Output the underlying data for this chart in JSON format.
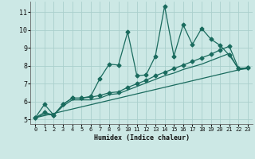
{
  "xlabel": "Humidex (Indice chaleur)",
  "bg_color": "#cce8e5",
  "line_color": "#1a6b5e",
  "grid_color": "#aacfcc",
  "xlim": [
    -0.5,
    23.5
  ],
  "ylim": [
    4.75,
    11.6
  ],
  "xticks": [
    0,
    1,
    2,
    3,
    4,
    5,
    6,
    7,
    8,
    9,
    10,
    11,
    12,
    13,
    14,
    15,
    16,
    17,
    18,
    19,
    20,
    21,
    22,
    23
  ],
  "yticks": [
    5,
    6,
    7,
    8,
    9,
    10,
    11
  ],
  "line1_x": [
    0,
    1,
    2,
    3,
    4,
    5,
    6,
    7,
    8,
    9,
    10,
    11,
    12,
    13,
    14,
    15,
    16,
    17,
    18,
    19,
    20,
    21,
    22,
    23
  ],
  "line1_y": [
    5.1,
    5.85,
    5.25,
    5.85,
    6.2,
    6.2,
    6.3,
    7.3,
    8.1,
    8.05,
    9.9,
    7.45,
    7.5,
    8.55,
    11.35,
    8.55,
    10.3,
    9.2,
    10.1,
    9.5,
    9.15,
    8.6,
    7.85,
    7.9
  ],
  "line2_x": [
    0,
    1,
    2,
    3,
    4,
    5,
    6,
    7,
    8,
    9,
    10,
    11,
    12,
    13,
    14,
    15,
    16,
    17,
    18,
    19,
    20,
    21,
    22,
    23
  ],
  "line2_y": [
    5.1,
    5.4,
    5.25,
    5.85,
    6.2,
    6.2,
    6.25,
    6.35,
    6.5,
    6.55,
    6.8,
    7.0,
    7.2,
    7.45,
    7.65,
    7.85,
    8.05,
    8.25,
    8.45,
    8.65,
    8.9,
    9.1,
    7.85,
    7.9
  ],
  "line3_x": [
    0,
    1,
    2,
    3,
    4,
    5,
    6,
    7,
    8,
    9,
    10,
    11,
    12,
    13,
    14,
    15,
    16,
    17,
    18,
    19,
    20,
    21,
    22,
    23
  ],
  "line3_y": [
    5.1,
    5.3,
    5.25,
    5.75,
    6.1,
    6.1,
    6.1,
    6.2,
    6.4,
    6.45,
    6.65,
    6.85,
    7.05,
    7.25,
    7.45,
    7.6,
    7.8,
    7.95,
    8.1,
    8.3,
    8.5,
    8.7,
    7.8,
    7.85
  ],
  "line4_x": [
    0,
    23
  ],
  "line4_y": [
    5.1,
    7.9
  ],
  "marker_size": 2.5,
  "linewidth": 0.9
}
